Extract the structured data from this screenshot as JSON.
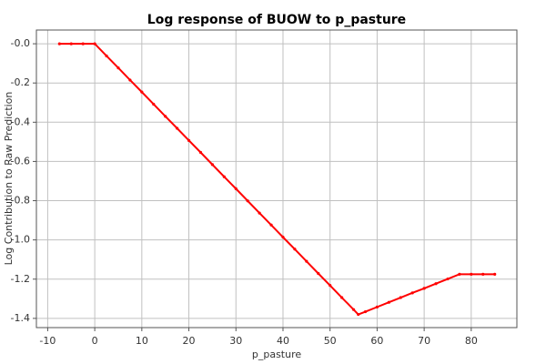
{
  "chart_data": {
    "type": "line",
    "title": "Log response of BUOW to p_pasture",
    "xlabel": "p_pasture",
    "ylabel": "Log Contribution to Raw Prediction",
    "x": [
      -7.5,
      -5,
      -2.5,
      0,
      2.5,
      5,
      7.5,
      10,
      12.5,
      15,
      17.5,
      20,
      22.5,
      25,
      27.5,
      30,
      32.5,
      35,
      37.5,
      40,
      42.5,
      45,
      47.5,
      50,
      52.5,
      55,
      56,
      57.5,
      60,
      62.5,
      65,
      67.5,
      70,
      72.5,
      75,
      77.5,
      80,
      82.5,
      85
    ],
    "series": [
      {
        "color": "#ff0000",
        "values": [
          0,
          0,
          0,
          0,
          -0.062,
          -0.123,
          -0.185,
          -0.246,
          -0.308,
          -0.37,
          -0.431,
          -0.493,
          -0.554,
          -0.616,
          -0.678,
          -0.739,
          -0.801,
          -0.863,
          -0.924,
          -0.986,
          -1.047,
          -1.109,
          -1.171,
          -1.232,
          -1.294,
          -1.355,
          -1.38,
          -1.366,
          -1.342,
          -1.318,
          -1.294,
          -1.27,
          -1.247,
          -1.223,
          -1.199,
          -1.175,
          -1.175,
          -1.175,
          -1.175
        ]
      }
    ],
    "xlim": [
      -12.4,
      89.7
    ],
    "ylim": [
      -1.447,
      0.07
    ],
    "xticks": [
      -10,
      0,
      10,
      20,
      30,
      40,
      50,
      60,
      70,
      80
    ],
    "yticks": [
      {
        "value": 0,
        "label": "-0.0"
      },
      -0.2,
      -0.4,
      -0.6,
      -0.8,
      {
        "value": -1,
        "label": "-1.0"
      },
      -1.2,
      -1.4
    ],
    "grid": true
  }
}
